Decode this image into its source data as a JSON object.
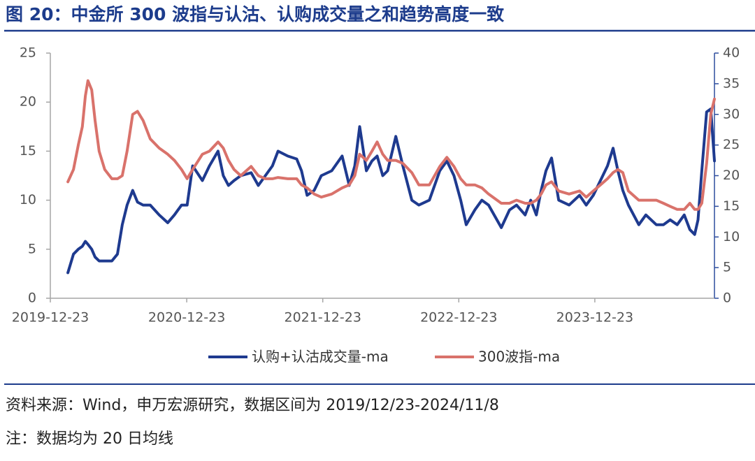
{
  "chart_data": {
    "type": "line",
    "title": "图 20：中金所 300 波指与认沽、认购成交量之和趋势高度一致",
    "source": "资料来源：Wind，申万宏源研究，数据区间为 2019/12/23-2024/11/8",
    "note": "注：数据均为 20 日均线",
    "x": [
      "2020-02-08",
      "2020-02-23",
      "2020-03-07",
      "2020-03-18",
      "2020-03-26",
      "2020-04-02",
      "2020-04-12",
      "2020-04-21",
      "2020-05-02",
      "2020-05-17",
      "2020-06-05",
      "2020-06-20",
      "2020-07-03",
      "2020-07-16",
      "2020-07-31",
      "2020-08-13",
      "2020-08-28",
      "2020-09-16",
      "2020-10-10",
      "2020-11-02",
      "2020-11-20",
      "2020-12-09",
      "2020-12-24",
      "2021-01-08",
      "2021-02-03",
      "2021-02-22",
      "2021-03-17",
      "2021-03-31",
      "2021-04-14",
      "2021-04-29",
      "2021-05-17",
      "2021-06-14",
      "2021-07-03",
      "2021-07-22",
      "2021-08-10",
      "2021-08-25",
      "2021-09-20",
      "2021-10-14",
      "2021-10-27",
      "2021-11-11",
      "2021-11-30",
      "2021-12-19",
      "2022-01-16",
      "2022-02-13",
      "2022-03-04",
      "2022-03-19",
      "2022-04-01",
      "2022-04-19",
      "2022-05-04",
      "2022-05-18",
      "2022-06-02",
      "2022-06-15",
      "2022-07-07",
      "2022-07-26",
      "2022-08-19",
      "2022-09-07",
      "2022-10-05",
      "2022-11-02",
      "2022-11-21",
      "2022-12-10",
      "2022-12-28",
      "2023-01-12",
      "2023-02-04",
      "2023-02-23",
      "2023-03-13",
      "2023-04-16",
      "2023-05-08",
      "2023-05-27",
      "2023-06-19",
      "2023-07-04",
      "2023-07-19",
      "2023-08-01",
      "2023-08-14",
      "2023-08-29",
      "2023-09-17",
      "2023-10-15",
      "2023-11-12",
      "2023-11-30",
      "2023-12-19",
      "2024-01-07",
      "2024-01-26",
      "2024-02-10",
      "2024-02-23",
      "2024-03-07",
      "2024-03-22",
      "2024-04-19",
      "2024-05-08",
      "2024-06-05",
      "2024-06-24",
      "2024-07-12",
      "2024-07-31",
      "2024-08-19",
      "2024-09-03",
      "2024-09-16",
      "2024-09-25",
      "2024-10-05",
      "2024-10-18",
      "2024-10-29",
      "2024-11-08"
    ],
    "series": [
      {
        "name": "认购+认沽成交量-ma",
        "color": "#1e3a8f",
        "values": [
          2.6,
          4.5,
          5.0,
          5.3,
          5.8,
          5.5,
          5.0,
          4.2,
          3.8,
          3.8,
          3.8,
          4.5,
          7.5,
          9.5,
          11.0,
          9.8,
          9.5,
          9.5,
          8.5,
          7.7,
          8.5,
          9.5,
          9.5,
          13.5,
          12.0,
          13.5,
          15.0,
          12.5,
          11.5,
          12.0,
          12.5,
          12.8,
          11.5,
          12.5,
          13.5,
          15.0,
          14.5,
          14.2,
          13.0,
          10.5,
          11.0,
          12.5,
          13.0,
          14.5,
          11.5,
          13.5,
          17.5,
          13.0,
          14.0,
          14.5,
          12.5,
          13.0,
          16.5,
          13.5,
          10.0,
          9.5,
          10.0,
          13.0,
          14.0,
          12.5,
          10.0,
          7.5,
          9.0,
          10.0,
          9.5,
          7.2,
          9.0,
          9.5,
          8.5,
          10.0,
          8.5,
          11.0,
          13.0,
          14.3,
          10.0,
          9.5,
          10.5,
          9.5,
          10.5,
          12.0,
          13.5,
          15.3,
          13.0,
          11.0,
          9.5,
          7.5,
          8.5,
          7.5,
          7.5,
          8.0,
          7.5,
          8.5,
          7.0,
          6.5,
          8.0,
          13.0,
          19.0,
          19.3,
          14.0
        ]
      },
      {
        "name": "300波指-ma",
        "color": "#d9726b",
        "axis": "y2",
        "values": [
          19,
          21,
          25,
          28,
          33,
          35.5,
          34,
          29,
          24,
          21,
          19.5,
          19.5,
          20,
          24,
          30,
          30.5,
          29,
          26,
          24.5,
          23.5,
          22.5,
          21,
          19.5,
          21,
          23.5,
          24,
          25.5,
          24.5,
          22.5,
          21,
          20,
          21.5,
          20,
          19.5,
          19.5,
          19.7,
          19.5,
          19.5,
          18.5,
          18,
          17,
          16.5,
          17,
          18,
          18.5,
          20,
          23.5,
          22.5,
          24,
          25.5,
          23.5,
          22.5,
          22.5,
          22,
          20.5,
          18.5,
          18.5,
          21.5,
          23,
          21.5,
          19.5,
          18.5,
          18.5,
          18,
          17,
          15.5,
          15.5,
          16,
          15.5,
          15.5,
          16,
          17,
          18.5,
          19,
          17.5,
          17,
          17.5,
          16.5,
          17.5,
          18.5,
          19.5,
          20.5,
          21,
          20.5,
          17.5,
          16,
          16,
          16,
          15.5,
          15,
          14.5,
          14.5,
          15.5,
          14.5,
          14.5,
          15.5,
          22,
          30,
          32.5
        ]
      }
    ],
    "xlim": [
      "2019-12-23",
      "2024-11-08"
    ],
    "xticks": [
      "2019-12-23",
      "2020-12-23",
      "2021-12-23",
      "2022-12-23",
      "2023-12-23"
    ],
    "ylim": [
      0,
      25
    ],
    "yticks": [
      0,
      5,
      10,
      15,
      20,
      25
    ],
    "y2lim": [
      0,
      40
    ],
    "y2ticks": [
      0,
      5,
      10,
      15,
      20,
      25,
      30,
      35,
      40
    ],
    "grid": false
  }
}
